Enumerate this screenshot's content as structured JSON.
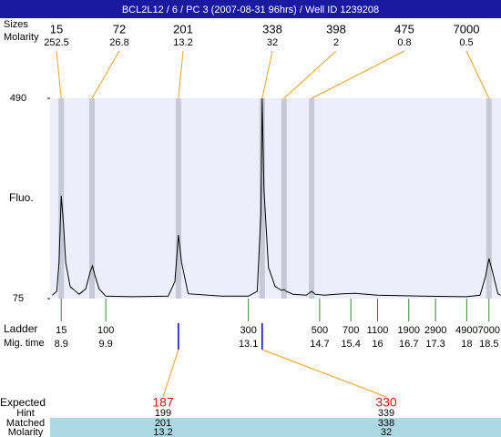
{
  "chart_data": {
    "type": "electropherogram",
    "title": "BCL2L12 / 6 / PC 3 (2007-08-31 96hrs) / Well ID 1239208",
    "size_label": "Sizes",
    "molarity_label": "Molarity",
    "y_label": "Fluo.",
    "ylim": [
      75,
      490
    ],
    "yticks": [
      75,
      490
    ],
    "xlim": [
      8.65,
      18.77
    ],
    "peaks": {
      "sizes": [
        15,
        72,
        201,
        338,
        398,
        475,
        7000
      ],
      "molarity": [
        252.5,
        26.8,
        13.2,
        32,
        2,
        0.8,
        0.5
      ],
      "x": [
        8.9,
        9.59,
        11.53,
        13.41,
        13.9,
        14.52,
        18.5
      ]
    },
    "trace": {
      "x": [
        8.7,
        8.8,
        8.85,
        8.9,
        8.95,
        9.0,
        9.1,
        9.3,
        9.45,
        9.55,
        9.6,
        9.65,
        9.75,
        9.9,
        10.5,
        11.3,
        11.45,
        11.53,
        11.6,
        11.75,
        12.5,
        13.1,
        13.3,
        13.38,
        13.41,
        13.45,
        13.55,
        13.7,
        13.85,
        13.9,
        13.95,
        14.1,
        14.4,
        14.52,
        14.6,
        14.8,
        15.2,
        15.5,
        16,
        17,
        18,
        18.3,
        18.42,
        18.5,
        18.58,
        18.7,
        18.76
      ],
      "y": [
        82,
        90,
        150,
        288,
        230,
        150,
        100,
        84,
        95,
        130,
        143,
        125,
        95,
        80,
        79,
        80,
        110,
        207,
        150,
        85,
        80,
        80,
        90,
        250,
        490,
        300,
        140,
        100,
        92,
        94,
        90,
        84,
        82,
        90,
        84,
        82,
        85,
        86,
        82,
        80,
        79,
        82,
        120,
        158,
        130,
        85,
        82
      ]
    },
    "ladder": {
      "label": "Ladder",
      "time_label": "Mig. time",
      "sizes": [
        15,
        100,
        300,
        500,
        700,
        1100,
        1900,
        2900,
        4900,
        7000
      ],
      "times": [
        8.9,
        9.9,
        13.1,
        14.7,
        15.4,
        16,
        16.7,
        17.3,
        18,
        18.5
      ]
    },
    "expected": {
      "label": "Expected",
      "hint_label": "Hint",
      "matched_label": "Matched",
      "molarity_label": "Molarity",
      "values": [
        187,
        330
      ],
      "hint": [
        199,
        339
      ],
      "matched": [
        201,
        338
      ],
      "molarity": [
        13.2,
        32
      ],
      "x": [
        11.53,
        13.41
      ]
    }
  }
}
